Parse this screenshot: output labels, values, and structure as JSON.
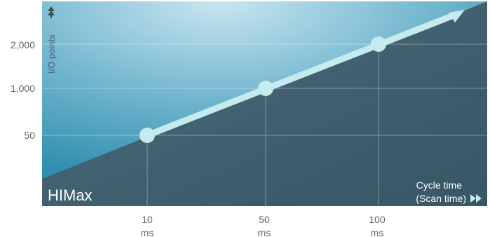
{
  "chart_data": {
    "type": "line",
    "brand_label": "HIMax",
    "ylabel": "I/O points",
    "xlabel_lines": [
      "Cycle time",
      "(Scan time)"
    ],
    "y_ticks": [
      "50",
      "1,000",
      "2,000"
    ],
    "x_ticks": [
      {
        "value": "10",
        "unit": "ms"
      },
      {
        "value": "50",
        "unit": "ms"
      },
      {
        "value": "100",
        "unit": "ms"
      }
    ],
    "series": [
      {
        "x": [
          "10",
          "50",
          "100"
        ],
        "y": [
          "50",
          "1,000",
          "2,000"
        ]
      }
    ],
    "grid": true,
    "colors": {
      "line": "#c5ebee",
      "area": "#3f6270",
      "background_light": "#bfe3ef",
      "background_dark": "#3b8fa8",
      "tick_text": "#5b6770"
    }
  }
}
